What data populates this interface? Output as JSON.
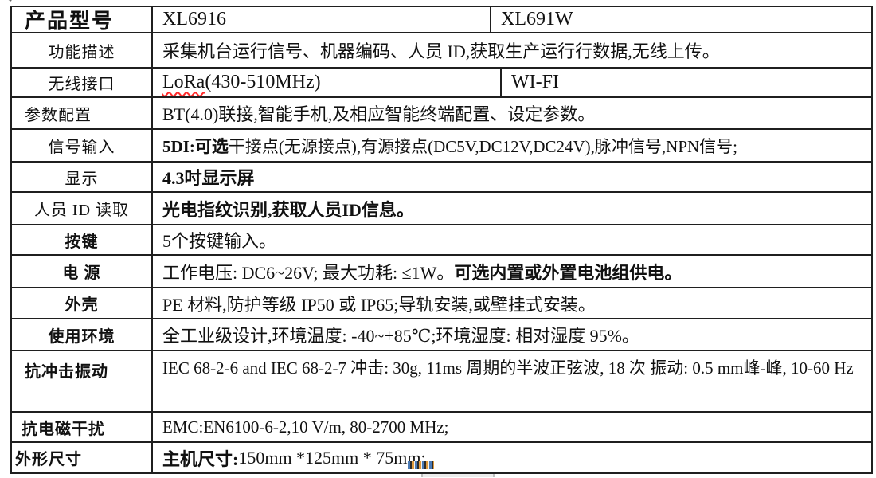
{
  "meta": {
    "background_color": "#ffffff",
    "border_color": "#1f1f1f",
    "text_color": "#111111",
    "spellcheck_underline_color": "#ff2a2a",
    "image_strip_colors": [
      "#4a7ab5",
      "#2b2b2b",
      "#e09c3f"
    ]
  },
  "table": {
    "rows": [
      {
        "label": "产品型号",
        "cells": [
          "XL6916",
          "XL691W"
        ]
      },
      {
        "label": "功能描述",
        "value": [
          {
            "t": "采集机台运行信号、机器编码、人员 ID,获取生产运行行数据,无线上传。"
          }
        ]
      },
      {
        "label": "无线接口",
        "cells_seg": [
          [
            {
              "t": "LoRa",
              "w": true
            },
            {
              "t": "(430-510MHz)"
            }
          ],
          [
            {
              "t": "WI-FI"
            }
          ]
        ]
      },
      {
        "label": "参数配置",
        "value": [
          {
            "t": "BT(4.0)联接,智能手机,及相应智能终端配置、设定参数。"
          }
        ]
      },
      {
        "label": "信号输入",
        "value": [
          {
            "t": "5DI:可选",
            "b": true
          },
          {
            "t": "干接点(无源接点),有源接点(DC5V,DC12V,DC24V),脉冲信号,NPN信号;"
          }
        ]
      },
      {
        "label": "显示",
        "value": [
          {
            "t": "4.3吋显示屏",
            "b": true
          }
        ]
      },
      {
        "label": "人员 ID 读取",
        "value": [
          {
            "t": "光电指纹识别,获取人员ID信息。",
            "b": true
          }
        ]
      },
      {
        "label": "按键",
        "value": [
          {
            "t": "5个按键输入。"
          }
        ]
      },
      {
        "label": "电 源",
        "value": [
          {
            "t": "工作电压: DC6~26V; 最大功耗: ≤1W。"
          },
          {
            "t": "可选内置或外置电池组供电。",
            "b": true
          }
        ]
      },
      {
        "label": "外壳",
        "value": [
          {
            "t": "PE 材料,防护等级 IP50 或 IP65;导轨安装,或壁挂式安装。"
          }
        ]
      },
      {
        "label": "使用环境",
        "value": [
          {
            "t": "全工业级设计,环境温度: -40~+85℃;环境湿度: 相对湿度 95%。"
          }
        ]
      },
      {
        "label": "抗冲击振动",
        "value": [
          {
            "t": "IEC 68-2-6 and IEC 68-2-7 冲击: 30g, 11ms 周期的半波正弦波, 18 次 振动: 0.5 mm"
          },
          {
            "br": true
          },
          {
            "t": "峰-峰, 10-60 Hz"
          }
        ]
      },
      {
        "label": "抗电磁干扰",
        "value": [
          {
            "t": "EMC:EN6100-6-2,10 V/m, 80-2700 MHz;"
          }
        ]
      },
      {
        "label": "外形尺寸",
        "value": [
          {
            "t": "主机尺寸:",
            "b": true
          },
          {
            "t": " 150mm *125mm * 75mm;"
          }
        ]
      }
    ]
  }
}
